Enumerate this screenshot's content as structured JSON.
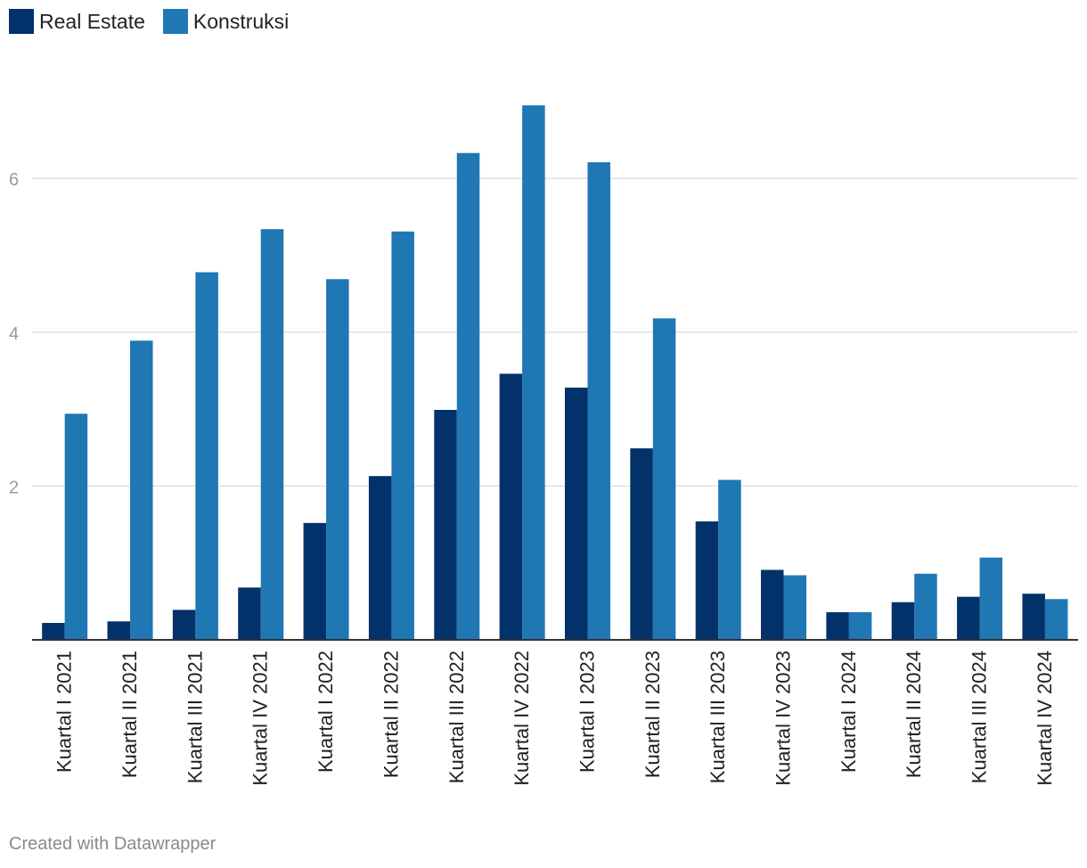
{
  "legend": [
    {
      "label": "Real Estate",
      "color": "#03326a"
    },
    {
      "label": "Konstruksi",
      "color": "#1f77b4"
    }
  ],
  "footer": {
    "credit": "Created with Datawrapper"
  },
  "chart_data": {
    "type": "bar",
    "categories": [
      "Kuartal I 2021",
      "Kuartal II 2021",
      "Kuartal III 2021",
      "Kuartal IV 2021",
      "Kuartal I 2022",
      "Kuartal II 2022",
      "Kuartal III 2022",
      "Kuartal IV 2022",
      "Kuartal I 2023",
      "Kuartal II 2023",
      "Kuartal III 2023",
      "Kuartal IV 2023",
      "Kuartal I 2024",
      "Kuartal II 2024",
      "Kuartal III 2024",
      "Kuartal IV 2024"
    ],
    "series": [
      {
        "name": "Real Estate",
        "color": "#03326a",
        "values": [
          0.22,
          0.24,
          0.39,
          0.68,
          1.52,
          2.13,
          2.99,
          3.46,
          3.28,
          2.49,
          1.54,
          0.91,
          0.36,
          0.49,
          0.56,
          0.6
        ]
      },
      {
        "name": "Konstruksi",
        "color": "#1f77b4",
        "values": [
          2.94,
          3.89,
          4.78,
          5.34,
          4.69,
          5.31,
          6.33,
          6.95,
          6.21,
          4.18,
          2.08,
          0.84,
          0.36,
          0.86,
          1.07,
          0.53
        ]
      }
    ],
    "yticks": [
      2,
      4,
      6
    ],
    "ylim": [
      0,
      7
    ],
    "grid": true,
    "legend_position": "top-left"
  }
}
